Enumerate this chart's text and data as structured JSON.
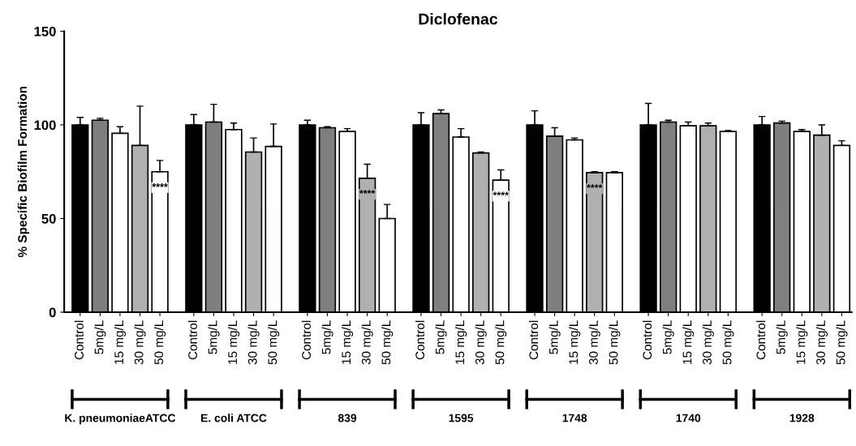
{
  "chart_data": {
    "type": "bar",
    "title": "Diclofenac",
    "ylabel": "% Specific Biofilm Formation",
    "categories": [
      "Control",
      "5mg/L",
      "15 mg/L",
      "30 mg/L",
      "50 mg/L",
      "Control",
      "5mg/L",
      "15 mg/L",
      "30 mg/L",
      "50 mg/L",
      "Control",
      "5mg/L",
      "15 mg/L",
      "30 mg/L",
      "50 mg/L",
      "Control",
      "5mg/L",
      "15 mg/L",
      "30 mg/L",
      "50 mg/L",
      "Control",
      "5mg/L",
      "15 mg/L",
      "30 mg/L",
      "50 mg/L",
      "Control",
      "5mg/L",
      "15 mg/L",
      "30 mg/L",
      "50 mg/L",
      "Control",
      "5mg/L",
      "15 mg/L",
      "30 mg/L",
      "50 mg/L"
    ],
    "values": [
      100,
      102.5,
      95.5,
      89,
      75,
      100,
      101.5,
      97.5,
      85.5,
      88.5,
      100,
      98.5,
      96.5,
      71.5,
      50,
      100,
      106,
      93.5,
      85,
      70.5,
      100,
      94,
      92,
      74.5,
      74.5,
      100,
      101.5,
      99.5,
      99.5,
      96.5,
      100,
      101,
      96.5,
      94.5,
      89
    ],
    "errors": [
      [
        100,
        104
      ],
      [
        102.5,
        103.5
      ],
      [
        95.5,
        99
      ],
      [
        89,
        110
      ],
      [
        75,
        81
      ],
      [
        100,
        105.5
      ],
      [
        101.5,
        111
      ],
      [
        97.5,
        101
      ],
      [
        85.5,
        93
      ],
      [
        88.5,
        100.5
      ],
      [
        100,
        102.5
      ],
      [
        98.5,
        99
      ],
      [
        96.5,
        98
      ],
      [
        71.5,
        79
      ],
      [
        50,
        57.5
      ],
      [
        100,
        106.5
      ],
      [
        106,
        108
      ],
      [
        93.5,
        98
      ],
      [
        85,
        85.5
      ],
      [
        70.5,
        76
      ],
      [
        100,
        107.5
      ],
      [
        94,
        98.5
      ],
      [
        92,
        93
      ],
      [
        74.5,
        75
      ],
      [
        74.5,
        75
      ],
      [
        100,
        111.5
      ],
      [
        101.5,
        102.5
      ],
      [
        99.5,
        101.5
      ],
      [
        99.5,
        101
      ],
      [
        96.5,
        97
      ],
      [
        100,
        104.5
      ],
      [
        101,
        102
      ],
      [
        96.5,
        97.5
      ],
      [
        94.5,
        100
      ],
      [
        89,
        91.5
      ]
    ],
    "value_labels": [
      null,
      null,
      null,
      null,
      "****",
      null,
      null,
      null,
      null,
      null,
      null,
      null,
      null,
      "****",
      null,
      null,
      null,
      null,
      null,
      "****",
      null,
      null,
      null,
      "****",
      null,
      null,
      null,
      null,
      null,
      null,
      null,
      null,
      null,
      null,
      null
    ],
    "colors": [
      "#000000",
      "#7f7f7f",
      "#ffffff",
      "#b0b0b0",
      "#ffffff",
      "#000000",
      "#7f7f7f",
      "#ffffff",
      "#b0b0b0",
      "#ffffff",
      "#000000",
      "#7f7f7f",
      "#ffffff",
      "#b0b0b0",
      "#ffffff",
      "#000000",
      "#7f7f7f",
      "#ffffff",
      "#b0b0b0",
      "#ffffff",
      "#000000",
      "#7f7f7f",
      "#ffffff",
      "#b0b0b0",
      "#ffffff",
      "#000000",
      "#7f7f7f",
      "#ffffff",
      "#b0b0b0",
      "#ffffff",
      "#000000",
      "#7f7f7f",
      "#ffffff",
      "#b0b0b0",
      "#ffffff"
    ],
    "ylim": [
      0,
      150
    ],
    "yticks": [
      0,
      50,
      100,
      150
    ],
    "grid": false,
    "annotations": [
      "K. pneumoniaeATCC",
      "E. coli ATCC",
      "839",
      "1595",
      "1748",
      "1740",
      "1928"
    ]
  }
}
